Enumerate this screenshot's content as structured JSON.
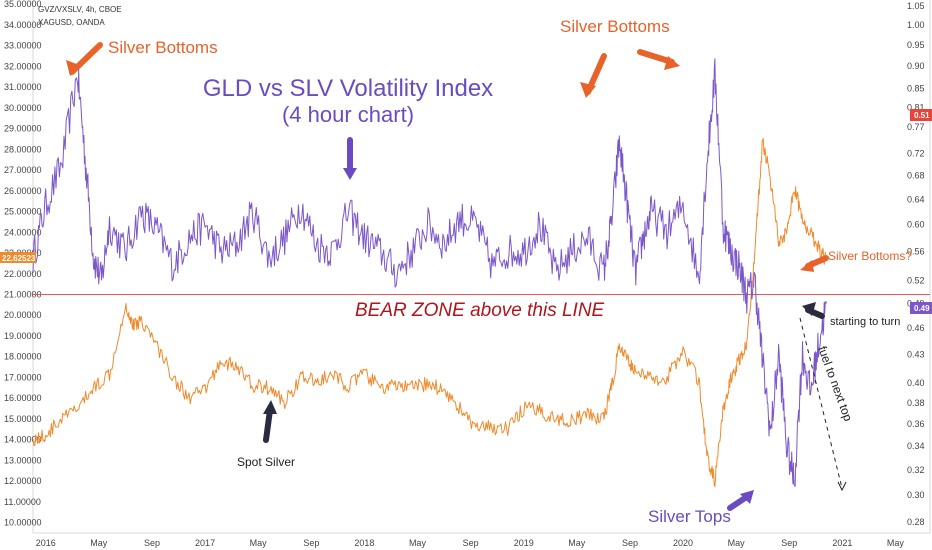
{
  "header": {
    "symbol_line1": "GVZ/VXSLV, 4h, CBOE",
    "symbol_line2": "XAGUSD, OANDA"
  },
  "annotations": {
    "title_line1": "GLD vs SLV Volatility Index",
    "title_line2": "(4 hour chart)",
    "silver_bottoms_left": "Silver Bottoms",
    "silver_bottoms_mid": "Silver Bottoms",
    "silver_bottoms_right": "Silver Bottoms?",
    "bear_zone": "BEAR ZONE above this LINE",
    "starting_to_turn": "starting to turn",
    "fuel_to_next_top": "fuel to next top",
    "spot_silver": "Spot Silver",
    "silver_tops": "Silver Tops"
  },
  "badges": {
    "silver_price": "22.62523",
    "ratio_orange": "0.51",
    "ratio_purple": "0.49"
  },
  "colors": {
    "ratio_series": "#7b57c9",
    "silver_series": "#f08a2c",
    "bear_line": "#e25b5b",
    "annotation_orange": "#e8622a",
    "annotation_purple": "#6a4bc2",
    "bear_text": "#b0151b",
    "badge_orange": "#f08a2c",
    "badge_purple": "#7b57c9",
    "badge_red": "#e8443a"
  },
  "chart_data": {
    "type": "line",
    "x_axis": {
      "ticks": [
        "2016",
        "May",
        "Sep",
        "2017",
        "May",
        "Sep",
        "2018",
        "May",
        "Sep",
        "2019",
        "May",
        "Sep",
        "2020",
        "May",
        "Sep",
        "2021",
        "May"
      ],
      "range": [
        "2015-12",
        "2021-07"
      ]
    },
    "left_axis": {
      "label": "XAGUSD",
      "ticks": [
        "10.00000",
        "11.00000",
        "12.00000",
        "13.00000",
        "14.00000",
        "15.00000",
        "16.00000",
        "17.00000",
        "18.00000",
        "19.00000",
        "20.00000",
        "21.00000",
        "22.00000",
        "23.00000",
        "24.00000",
        "25.00000",
        "26.00000",
        "27.00000",
        "28.00000",
        "29.00000",
        "30.00000",
        "31.00000",
        "32.00000",
        "33.00000",
        "34.00000",
        "35.00000"
      ],
      "range": [
        9.5,
        35.2
      ]
    },
    "right_axis": {
      "label": "GVZ/VXSLV",
      "ticks": [
        "0.28",
        "0.30",
        "0.32",
        "0.34",
        "0.36",
        "0.38",
        "0.40",
        "0.43",
        "0.46",
        "0.49",
        "0.52",
        "0.56",
        "0.60",
        "0.64",
        "0.68",
        "0.72",
        "0.77",
        "0.81",
        "0.85",
        "0.90",
        "0.95",
        "1.00",
        "1.05"
      ],
      "scale": "log"
    },
    "series": [
      {
        "name": "GVZ/VXSLV",
        "axis": "right",
        "x": [
          2015.92,
          2016.0,
          2016.1,
          2016.2,
          2016.25,
          2016.3,
          2016.35,
          2016.4,
          2016.5,
          2016.6,
          2016.7,
          2016.8,
          2016.9,
          2017.0,
          2017.1,
          2017.2,
          2017.3,
          2017.4,
          2017.5,
          2017.6,
          2017.7,
          2017.8,
          2017.9,
          2018.0,
          2018.1,
          2018.2,
          2018.3,
          2018.4,
          2018.5,
          2018.6,
          2018.7,
          2018.8,
          2018.9,
          2019.0,
          2019.1,
          2019.2,
          2019.3,
          2019.4,
          2019.5,
          2019.55,
          2019.6,
          2019.65,
          2019.7,
          2019.75,
          2019.8,
          2019.9,
          2020.0,
          2020.1,
          2020.15,
          2020.2,
          2020.25,
          2020.3,
          2020.35,
          2020.4,
          2020.45,
          2020.5,
          2020.55,
          2020.6,
          2020.65,
          2020.7,
          2020.75,
          2020.8,
          2020.85,
          2020.9
        ],
        "values": [
          0.55,
          0.63,
          0.7,
          0.88,
          0.7,
          0.55,
          0.52,
          0.6,
          0.56,
          0.62,
          0.59,
          0.54,
          0.58,
          0.6,
          0.56,
          0.57,
          0.62,
          0.55,
          0.58,
          0.63,
          0.57,
          0.56,
          0.62,
          0.58,
          0.56,
          0.53,
          0.56,
          0.6,
          0.57,
          0.61,
          0.6,
          0.54,
          0.56,
          0.56,
          0.6,
          0.53,
          0.56,
          0.58,
          0.53,
          0.6,
          0.74,
          0.63,
          0.53,
          0.58,
          0.62,
          0.59,
          0.63,
          0.52,
          0.7,
          0.88,
          0.6,
          0.56,
          0.54,
          0.5,
          0.52,
          0.42,
          0.35,
          0.43,
          0.34,
          0.31,
          0.43,
          0.39,
          0.44,
          0.49
        ]
      },
      {
        "name": "XAGUSD",
        "axis": "left",
        "x": [
          2015.92,
          2016.0,
          2016.1,
          2016.2,
          2016.3,
          2016.4,
          2016.5,
          2016.55,
          2016.6,
          2016.7,
          2016.8,
          2016.9,
          2017.0,
          2017.1,
          2017.2,
          2017.3,
          2017.4,
          2017.5,
          2017.6,
          2017.7,
          2017.8,
          2017.9,
          2018.0,
          2018.1,
          2018.2,
          2018.3,
          2018.4,
          2018.5,
          2018.6,
          2018.7,
          2018.8,
          2018.9,
          2019.0,
          2019.1,
          2019.2,
          2019.3,
          2019.4,
          2019.5,
          2019.55,
          2019.6,
          2019.65,
          2019.7,
          2019.8,
          2019.9,
          2020.0,
          2020.1,
          2020.15,
          2020.2,
          2020.25,
          2020.3,
          2020.35,
          2020.4,
          2020.45,
          2020.5,
          2020.55,
          2020.6,
          2020.65,
          2020.7,
          2020.75,
          2020.8,
          2020.85,
          2020.9
        ],
        "values": [
          14.0,
          14.2,
          15.0,
          15.5,
          16.5,
          17.2,
          20.5,
          19.5,
          19.8,
          18.5,
          17.0,
          16.0,
          16.4,
          17.8,
          17.5,
          16.6,
          16.5,
          15.8,
          17.0,
          16.8,
          17.1,
          16.6,
          17.2,
          16.5,
          16.6,
          16.5,
          16.7,
          16.4,
          15.5,
          14.5,
          14.6,
          14.5,
          15.5,
          15.4,
          15.0,
          14.9,
          15.2,
          15.0,
          16.5,
          18.5,
          17.8,
          17.4,
          16.9,
          17.0,
          18.3,
          16.8,
          13.2,
          12.0,
          15.3,
          16.9,
          17.8,
          18.6,
          23.0,
          28.5,
          26.5,
          23.6,
          24.0,
          26.2,
          24.5,
          24.0,
          23.3,
          22.6
        ]
      }
    ],
    "reference_lines": [
      {
        "axis": "left",
        "value": 21.0,
        "note": "BEAR ZONE above this LINE"
      }
    ],
    "legend": "top-left",
    "grid": false
  }
}
